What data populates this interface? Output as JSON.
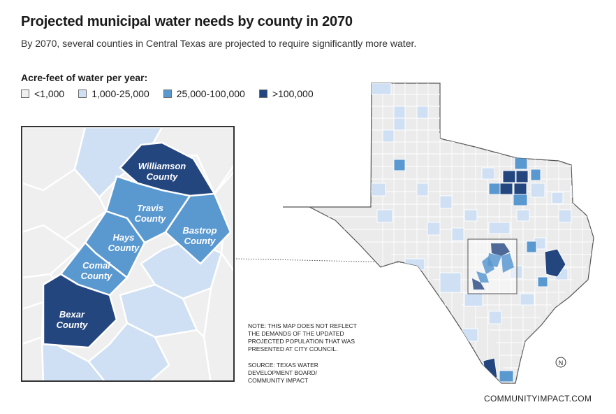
{
  "title": "Projected municipal water needs by county in 2070",
  "subtitle": "By 2070, several counties in Central Texas are projected to require significantly more water.",
  "legend": {
    "title": "Acre-feet of water per year:",
    "items": [
      {
        "label": "<1,000",
        "color": "#f0f0f0"
      },
      {
        "label": "1,000-25,000",
        "color": "#cfe0f4"
      },
      {
        "label": "25,000-100,000",
        "color": "#5a98d0"
      },
      {
        "label": ">100,000",
        "color": "#24467f"
      }
    ]
  },
  "inset": {
    "counties": [
      {
        "name_line1": "Williamson",
        "name_line2": "County",
        "category": ">100,000"
      },
      {
        "name_line1": "Travis",
        "name_line2": "County",
        "category": "25,000-100,000"
      },
      {
        "name_line1": "Bastrop",
        "name_line2": "County",
        "category": "25,000-100,000"
      },
      {
        "name_line1": "Hays",
        "name_line2": "County",
        "category": "25,000-100,000"
      },
      {
        "name_line1": "Comal",
        "name_line2": "County",
        "category": "25,000-100,000"
      },
      {
        "name_line1": "Bexar",
        "name_line2": "County",
        "category": ">100,000"
      }
    ]
  },
  "note": "NOTE: THIS MAP DOES NOT REFLECT THE DEMANDS OF THE UPDATED PROJECTED POPULATION THAT WAS PRESENTED AT CITY COUNCIL.",
  "source": "SOURCE: TEXAS WATER DEVELOPMENT BOARD/ COMMUNITY IMPACT",
  "compass": "N",
  "credit": "COMMUNITYIMPACT.COM"
}
